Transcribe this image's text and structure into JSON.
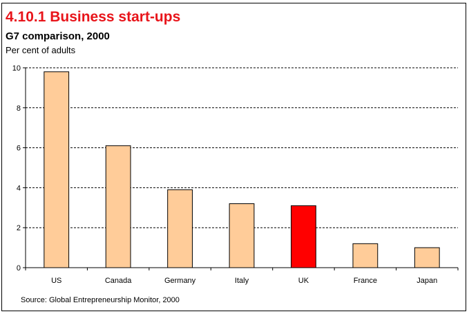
{
  "chart_data": {
    "type": "bar",
    "title": "4.10.1 Business start-ups",
    "subtitle": "G7 comparison, 2000",
    "ylabel": "Per cent of adults",
    "xlabel": "",
    "categories": [
      "US",
      "Canada",
      "Germany",
      "Italy",
      "UK",
      "France",
      "Japan"
    ],
    "values": [
      9.8,
      6.1,
      3.9,
      3.2,
      3.1,
      1.2,
      1.0
    ],
    "highlight": "UK",
    "ylim": [
      0,
      10
    ],
    "yticks": [
      0,
      2,
      4,
      6,
      8,
      10
    ],
    "grid": true,
    "source": "Source: Global Entrepreneurship Monitor, 2000"
  },
  "colors": {
    "bar": "#ffcc99",
    "highlight": "#ff0000",
    "title": "#e8141a"
  }
}
